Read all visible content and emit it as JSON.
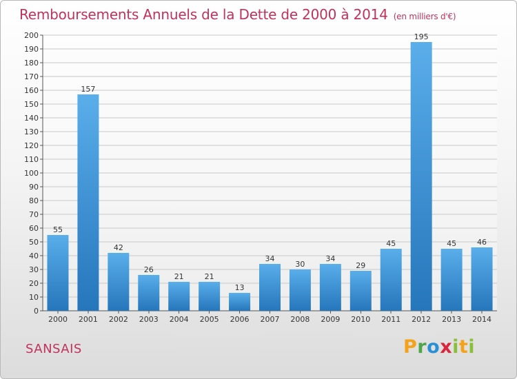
{
  "title": "Remboursements Annuels de la Dette de 2000 à 2014",
  "unit": "(en milliers d'€)",
  "commune": "SANSAIS",
  "brand": {
    "p": "P",
    "r": "r",
    "o": "o",
    "x": "x",
    "i": "i",
    "t": "t",
    "i2": "i"
  },
  "colors": {
    "bar_top": "#5aaeea",
    "bar_bottom": "#2576bb",
    "title": "#c0325a"
  },
  "chart_data": {
    "type": "bar",
    "title": "Remboursements Annuels de la Dette de 2000 à 2014",
    "ylabel": "",
    "xlabel": "",
    "ylim": [
      0,
      200
    ],
    "yticks": [
      0,
      10,
      20,
      30,
      40,
      50,
      60,
      70,
      80,
      90,
      100,
      110,
      120,
      130,
      140,
      150,
      160,
      170,
      180,
      190,
      200
    ],
    "grid": true,
    "categories": [
      "2000",
      "2001",
      "2002",
      "2003",
      "2004",
      "2005",
      "2006",
      "2007",
      "2008",
      "2009",
      "2010",
      "2011",
      "2012",
      "2013",
      "2014"
    ],
    "values": [
      55,
      157,
      42,
      26,
      21,
      21,
      13,
      34,
      30,
      34,
      29,
      45,
      195,
      45,
      46
    ]
  }
}
